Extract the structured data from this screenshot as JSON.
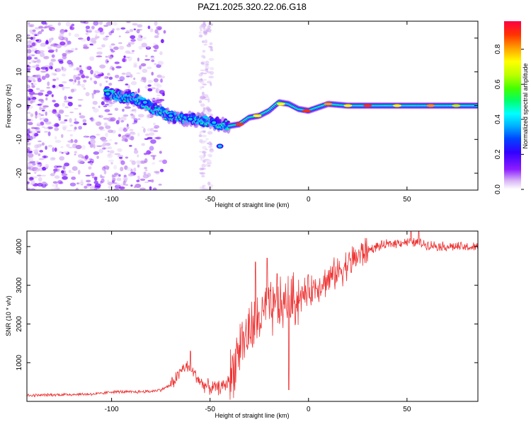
{
  "figure_title": "PAZ1.2025.320.22.06.G18",
  "chart_data": [
    {
      "type": "heatmap",
      "title": "PAZ1.2025.320.22.06.G18",
      "xlabel": "Height of straight line (km)",
      "ylabel": "Frequency (Hz)",
      "xlim": [
        -143,
        86
      ],
      "ylim": [
        -25,
        25
      ],
      "xticks": [
        -100,
        -50,
        0,
        50
      ],
      "yticks": [
        -20,
        -10,
        0,
        10,
        20
      ],
      "grid": false,
      "colorbar": {
        "label": "Normalized spectral amplitude",
        "range": [
          0,
          0.96
        ],
        "ticks": [
          0.0,
          0.2,
          0.4,
          0.6,
          0.8
        ],
        "colormap": [
          "#ffffff",
          "#d9b8f5",
          "#8c1cff",
          "#3300ff",
          "#0044ff",
          "#00b4ff",
          "#00ffff",
          "#00ff66",
          "#44ff00",
          "#bbff00",
          "#ffff00",
          "#ffa000",
          "#ff3300",
          "#ff0044"
        ]
      },
      "ridge_trace": [
        {
          "x": -103,
          "y": 3.5
        },
        {
          "x": -98,
          "y": 3
        },
        {
          "x": -93,
          "y": 2.5
        },
        {
          "x": -88,
          "y": 2
        },
        {
          "x": -83,
          "y": 0.5
        },
        {
          "x": -78,
          "y": -1
        },
        {
          "x": -73,
          "y": -2.5
        },
        {
          "x": -68,
          "y": -3.5
        },
        {
          "x": -63,
          "y": -4
        },
        {
          "x": -58,
          "y": -4
        },
        {
          "x": -53,
          "y": -4.5
        },
        {
          "x": -48,
          "y": -5
        },
        {
          "x": -44,
          "y": -5.5
        },
        {
          "x": -40,
          "y": -6
        },
        {
          "x": -35,
          "y": -5.5
        },
        {
          "x": -30,
          "y": -3.5
        },
        {
          "x": -25,
          "y": -3
        },
        {
          "x": -20,
          "y": -1.5
        },
        {
          "x": -15,
          "y": 1
        },
        {
          "x": -10,
          "y": 0.5
        },
        {
          "x": -5,
          "y": -1
        },
        {
          "x": 0,
          "y": -1.5
        },
        {
          "x": 5,
          "y": -0.5
        },
        {
          "x": 10,
          "y": 0.5
        },
        {
          "x": 20,
          "y": 0
        },
        {
          "x": 40,
          "y": 0
        },
        {
          "x": 60,
          "y": 0
        },
        {
          "x": 86,
          "y": 0
        }
      ]
    },
    {
      "type": "line",
      "xlabel": "Height of straight line (km)",
      "ylabel": "SNR (10 * v/v)",
      "xlim": [
        -143,
        86
      ],
      "ylim": [
        0,
        4400
      ],
      "xticks": [
        -100,
        -50,
        0,
        50
      ],
      "yticks": [
        1000,
        2000,
        3000,
        4000
      ],
      "grid": false,
      "series": [
        {
          "name": "SNR",
          "color": "#ee3333",
          "points": [
            [
              -143,
              150
            ],
            [
              -130,
              170
            ],
            [
              -120,
              180
            ],
            [
              -110,
              190
            ],
            [
              -105,
              200
            ],
            [
              -100,
              250
            ],
            [
              -90,
              240
            ],
            [
              -80,
              260
            ],
            [
              -75,
              300
            ],
            [
              -70,
              420
            ],
            [
              -66,
              700
            ],
            [
              -63,
              900
            ],
            [
              -60,
              850
            ],
            [
              -57,
              650
            ],
            [
              -54,
              450
            ],
            [
              -50,
              360
            ],
            [
              -46,
              350
            ],
            [
              -42,
              420
            ],
            [
              -39,
              700
            ],
            [
              -36,
              1300
            ],
            [
              -33,
              1550
            ],
            [
              -30,
              1800
            ],
            [
              -27,
              2000
            ],
            [
              -24,
              2200
            ],
            [
              -21,
              2300
            ],
            [
              -18,
              2350
            ],
            [
              -15,
              2400
            ],
            [
              -12,
              2500
            ],
            [
              -8,
              2600
            ],
            [
              -4,
              2700
            ],
            [
              0,
              2850
            ],
            [
              5,
              3000
            ],
            [
              10,
              3150
            ],
            [
              15,
              3350
            ],
            [
              20,
              3550
            ],
            [
              25,
              3750
            ],
            [
              30,
              3900
            ],
            [
              35,
              4000
            ],
            [
              40,
              4050
            ],
            [
              45,
              4100
            ],
            [
              50,
              4120
            ],
            [
              55,
              4100
            ],
            [
              60,
              4050
            ],
            [
              65,
              4020
            ],
            [
              70,
              4000
            ],
            [
              75,
              4000
            ],
            [
              80,
              3980
            ],
            [
              86,
              3980
            ]
          ],
          "annotated_spikes": [
            [
              -60,
              1300
            ],
            [
              -34,
              1900
            ],
            [
              -27,
              3600
            ],
            [
              -21,
              3700
            ],
            [
              -16,
              3300
            ],
            [
              -12,
              2400
            ],
            [
              -10,
              3900
            ],
            [
              -10,
              300
            ],
            [
              52,
              4400
            ],
            [
              56,
              4400
            ]
          ]
        }
      ]
    }
  ]
}
